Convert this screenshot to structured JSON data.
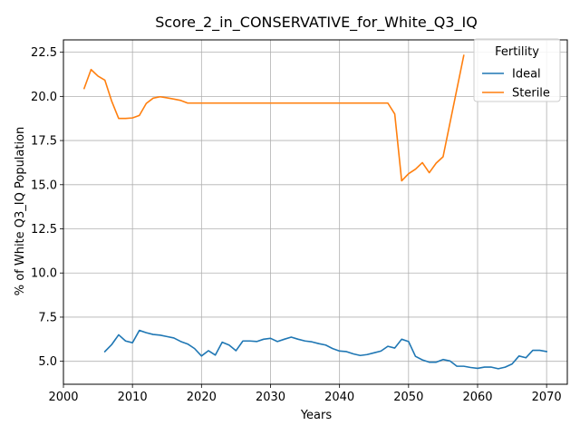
{
  "chart_data": {
    "type": "line",
    "title": "Score_2_in_CONSERVATIVE_for_White_Q3_IQ",
    "xlabel": "Years",
    "ylabel": "% of White Q3_IQ Population",
    "xlim": [
      2000,
      2073
    ],
    "ylim": [
      3.7,
      23.2
    ],
    "xticks": [
      2000,
      2010,
      2020,
      2030,
      2040,
      2050,
      2060,
      2070
    ],
    "yticks": [
      5.0,
      7.5,
      10.0,
      12.5,
      15.0,
      17.5,
      20.0,
      22.5
    ],
    "ytick_labels": [
      "5.0",
      "7.5",
      "10.0",
      "12.5",
      "15.0",
      "17.5",
      "20.0",
      "22.5"
    ],
    "grid": true,
    "legend": {
      "title": "Fertility",
      "position": "top-right"
    },
    "series": [
      {
        "name": "Ideal",
        "color": "#1f77b4",
        "x": [
          2006,
          2007,
          2008,
          2009,
          2010,
          2011,
          2012,
          2013,
          2014,
          2015,
          2016,
          2017,
          2018,
          2019,
          2020,
          2021,
          2022,
          2023,
          2024,
          2025,
          2026,
          2027,
          2028,
          2029,
          2030,
          2031,
          2032,
          2033,
          2034,
          2035,
          2036,
          2037,
          2038,
          2039,
          2040,
          2041,
          2042,
          2043,
          2044,
          2045,
          2046,
          2047,
          2048,
          2049,
          2050,
          2051,
          2052,
          2053,
          2054,
          2055,
          2056,
          2057,
          2058,
          2059,
          2060,
          2061,
          2062,
          2063,
          2064,
          2065,
          2066,
          2067,
          2068,
          2069,
          2070
        ],
        "y": [
          5.55,
          5.95,
          6.5,
          6.15,
          6.05,
          6.75,
          6.62,
          6.52,
          6.48,
          6.4,
          6.32,
          6.12,
          5.98,
          5.72,
          5.3,
          5.6,
          5.35,
          6.08,
          5.92,
          5.6,
          6.15,
          6.15,
          6.12,
          6.25,
          6.3,
          6.12,
          6.25,
          6.37,
          6.25,
          6.15,
          6.1,
          6.0,
          5.92,
          5.72,
          5.58,
          5.55,
          5.42,
          5.33,
          5.38,
          5.48,
          5.58,
          5.85,
          5.75,
          6.25,
          6.12,
          5.28,
          5.08,
          4.95,
          4.95,
          5.1,
          5.02,
          4.72,
          4.72,
          4.65,
          4.6,
          4.67,
          4.67,
          4.58,
          4.67,
          4.85,
          5.3,
          5.2,
          5.62,
          5.62,
          5.55
        ]
      },
      {
        "name": "Sterile",
        "color": "#ff7f0e",
        "x": [
          2003,
          2004,
          2005,
          2006,
          2007,
          2008,
          2009,
          2010,
          2011,
          2012,
          2013,
          2014,
          2015,
          2016,
          2017,
          2018,
          2019,
          2020,
          2025,
          2030,
          2035,
          2040,
          2045,
          2047,
          2048,
          2049,
          2050,
          2051,
          2052,
          2053,
          2054,
          2055,
          2058
        ],
        "y": [
          20.45,
          21.52,
          21.15,
          20.92,
          19.72,
          18.75,
          18.75,
          18.78,
          18.92,
          19.6,
          19.9,
          19.98,
          19.92,
          19.85,
          19.77,
          19.62,
          19.62,
          19.62,
          19.62,
          19.62,
          19.62,
          19.62,
          19.62,
          19.62,
          19.0,
          15.22,
          15.62,
          15.88,
          16.25,
          15.68,
          16.22,
          16.58,
          22.32
        ]
      }
    ]
  }
}
